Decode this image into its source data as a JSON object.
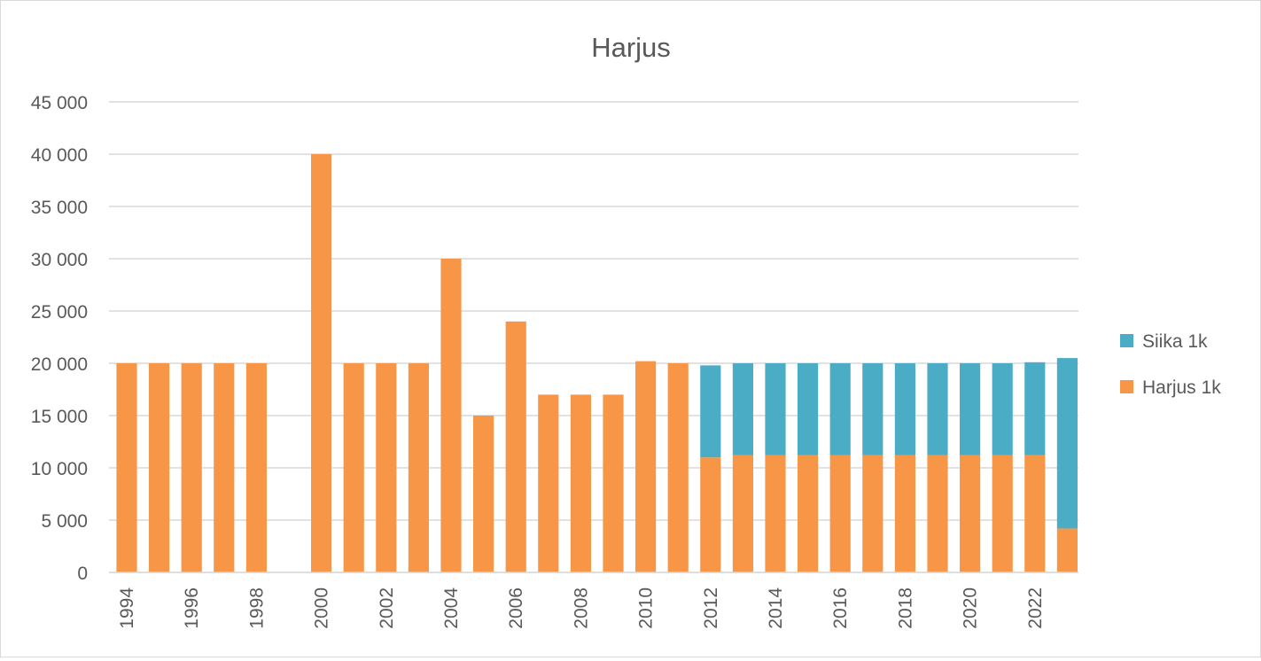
{
  "chart_data": {
    "type": "bar",
    "stacked": true,
    "title": "Harjus",
    "xlabel": "",
    "ylabel": "",
    "ylim": [
      0,
      45000
    ],
    "y_ticks": [
      0,
      5000,
      10000,
      15000,
      20000,
      25000,
      30000,
      35000,
      40000,
      45000
    ],
    "y_tick_labels": [
      "0",
      "5 000",
      "10 000",
      "15 000",
      "20 000",
      "25 000",
      "30 000",
      "35 000",
      "40 000",
      "45 000"
    ],
    "categories": [
      "1994",
      "1995",
      "1996",
      "1997",
      "1998",
      "1999",
      "2000",
      "2001",
      "2002",
      "2003",
      "2004",
      "2005",
      "2006",
      "2007",
      "2008",
      "2009",
      "2010",
      "2011",
      "2012",
      "2013",
      "2014",
      "2015",
      "2016",
      "2017",
      "2018",
      "2019",
      "2020",
      "2021",
      "2022",
      "2023"
    ],
    "x_tick_labels": [
      "1994",
      "",
      "1996",
      "",
      "1998",
      "",
      "2000",
      "",
      "2002",
      "",
      "2004",
      "",
      "2006",
      "",
      "2008",
      "",
      "2010",
      "",
      "2012",
      "",
      "2014",
      "",
      "2016",
      "",
      "2018",
      "",
      "2020",
      "",
      "2022",
      ""
    ],
    "grid": true,
    "legend_position": "right",
    "series": [
      {
        "name": "Harjus 1k",
        "color": "#f79646",
        "values": [
          20000,
          20000,
          20000,
          20000,
          20000,
          0,
          40000,
          20000,
          20000,
          20000,
          30000,
          15000,
          24000,
          17000,
          17000,
          17000,
          20200,
          20000,
          11000,
          11200,
          11200,
          11200,
          11200,
          11200,
          11200,
          11200,
          11200,
          11200,
          11200,
          4200
        ]
      },
      {
        "name": "Siika 1k",
        "color": "#4bacc6",
        "values": [
          0,
          0,
          0,
          0,
          0,
          0,
          0,
          0,
          0,
          0,
          0,
          0,
          0,
          0,
          0,
          0,
          0,
          0,
          8800,
          8800,
          8800,
          8800,
          8800,
          8800,
          8800,
          8800,
          8800,
          8800,
          8900,
          16300
        ]
      }
    ],
    "legend": [
      {
        "name": "Siika 1k",
        "color": "#4bacc6"
      },
      {
        "name": "Harjus 1k",
        "color": "#f79646"
      }
    ]
  }
}
